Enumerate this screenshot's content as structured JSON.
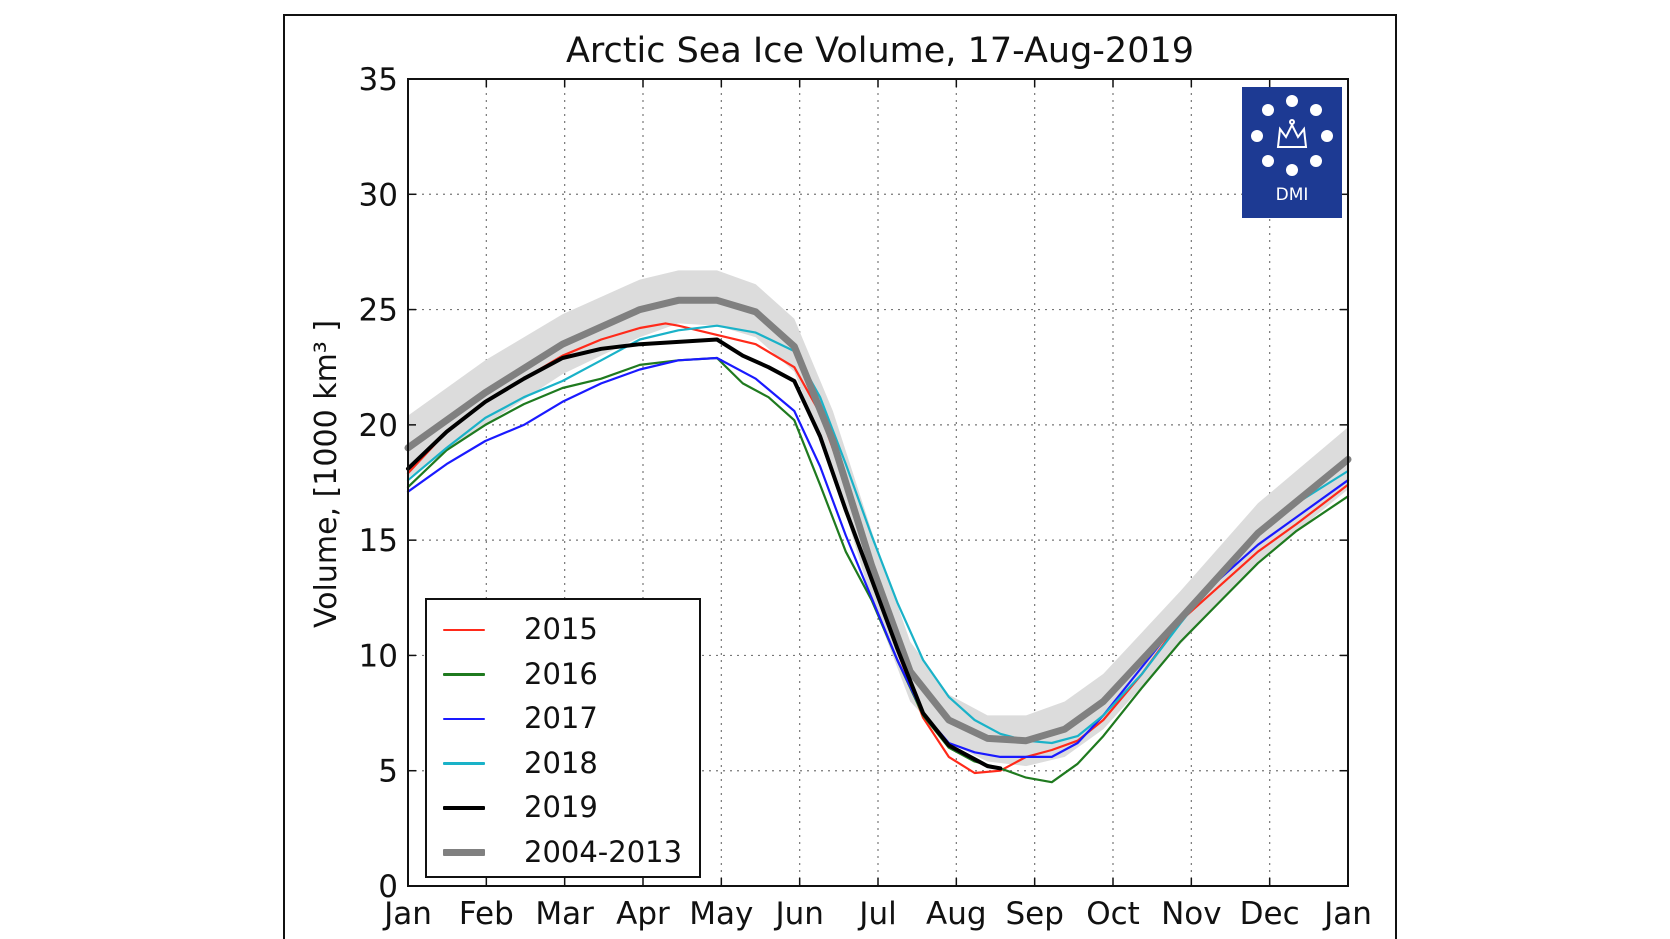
{
  "chart_data": {
    "type": "line",
    "title": "Arctic Sea Ice Volume, 17-Aug-2019",
    "xlabel": "",
    "ylabel": "Volume, [1000 km³ ]",
    "ylim": [
      0,
      35
    ],
    "yticks": [
      "0",
      "5",
      "10",
      "15",
      "20",
      "25",
      "30",
      "35"
    ],
    "x_categories": [
      "Jan",
      "Feb",
      "Mar",
      "Apr",
      "May",
      "Jun",
      "Jul",
      "Aug",
      "Sep",
      "Oct",
      "Nov",
      "Dec",
      "Jan"
    ],
    "x_unit": "day of year (0-365)",
    "grid": true,
    "legend_position": "lower-left",
    "band": {
      "name": "2004-2013 range",
      "color": "#dcdcdc",
      "x": [
        0,
        30,
        60,
        90,
        105,
        120,
        135,
        150,
        165,
        180,
        195,
        210,
        225,
        240,
        255,
        270,
        300,
        330,
        365
      ],
      "upper": [
        20.4,
        22.8,
        24.8,
        26.3,
        26.7,
        26.7,
        26.1,
        24.6,
        20.6,
        15.4,
        10.6,
        8.3,
        7.4,
        7.4,
        8.0,
        9.2,
        12.8,
        16.6,
        19.9
      ],
      "lower": [
        17.7,
        20.0,
        22.2,
        23.8,
        24.4,
        24.3,
        23.8,
        22.3,
        18.0,
        12.4,
        8.0,
        6.2,
        5.4,
        5.2,
        5.6,
        6.8,
        10.5,
        14.0,
        17.2
      ]
    },
    "series": [
      {
        "name": "2015",
        "color": "#ff2a1a",
        "width": 2.2,
        "x": [
          0,
          15,
          30,
          45,
          60,
          75,
          90,
          100,
          105,
          120,
          135,
          150,
          160,
          170,
          180,
          190,
          200,
          210,
          220,
          230,
          240,
          250,
          260,
          270,
          285,
          300,
          315,
          330,
          345,
          365
        ],
        "y": [
          17.9,
          19.7,
          21.0,
          22.0,
          23.0,
          23.7,
          24.2,
          24.4,
          24.3,
          23.9,
          23.5,
          22.5,
          20.5,
          17.4,
          13.9,
          10.2,
          7.3,
          5.6,
          4.9,
          5.0,
          5.6,
          5.9,
          6.3,
          7.2,
          9.2,
          11.5,
          13.0,
          14.5,
          15.7,
          17.4
        ]
      },
      {
        "name": "2016",
        "color": "#1f7a1f",
        "width": 2.2,
        "x": [
          0,
          15,
          30,
          45,
          60,
          75,
          90,
          105,
          120,
          130,
          140,
          150,
          160,
          170,
          180,
          190,
          200,
          210,
          220,
          230,
          240,
          250,
          260,
          270,
          285,
          300,
          315,
          330,
          345,
          365
        ],
        "y": [
          17.3,
          18.9,
          20.0,
          20.9,
          21.6,
          22.0,
          22.6,
          22.8,
          22.9,
          21.8,
          21.2,
          20.2,
          17.4,
          14.5,
          12.4,
          9.8,
          7.4,
          6.0,
          5.4,
          5.1,
          4.7,
          4.5,
          5.3,
          6.5,
          8.6,
          10.6,
          12.3,
          14.0,
          15.4,
          16.9
        ]
      },
      {
        "name": "2017",
        "color": "#1a1aff",
        "width": 2.2,
        "x": [
          0,
          15,
          30,
          45,
          60,
          75,
          90,
          105,
          120,
          135,
          150,
          160,
          170,
          180,
          190,
          200,
          210,
          220,
          230,
          240,
          250,
          260,
          270,
          285,
          300,
          315,
          330,
          345,
          365
        ],
        "y": [
          17.1,
          18.3,
          19.3,
          20.0,
          21.0,
          21.8,
          22.4,
          22.8,
          22.9,
          22.0,
          20.6,
          18.2,
          15.2,
          12.5,
          9.8,
          7.5,
          6.2,
          5.8,
          5.6,
          5.6,
          5.6,
          6.2,
          7.4,
          9.5,
          11.6,
          13.3,
          14.8,
          16.0,
          17.6
        ]
      },
      {
        "name": "2018",
        "color": "#1ab2c8",
        "width": 2.2,
        "x": [
          0,
          15,
          30,
          45,
          60,
          75,
          90,
          105,
          120,
          135,
          150,
          160,
          170,
          180,
          190,
          200,
          210,
          220,
          230,
          240,
          250,
          260,
          270,
          285,
          300,
          315,
          330,
          345,
          365
        ],
        "y": [
          17.6,
          19.0,
          20.3,
          21.2,
          21.9,
          22.8,
          23.7,
          24.1,
          24.3,
          24.0,
          23.2,
          21.2,
          18.3,
          15.2,
          12.3,
          9.8,
          8.2,
          7.2,
          6.6,
          6.3,
          6.2,
          6.5,
          7.4,
          9.2,
          11.4,
          13.5,
          15.3,
          16.6,
          18.0
        ]
      },
      {
        "name": "2019",
        "color": "#000000",
        "width": 4,
        "x": [
          0,
          15,
          30,
          45,
          60,
          75,
          90,
          105,
          120,
          130,
          140,
          150,
          160,
          170,
          180,
          190,
          200,
          210,
          220,
          225,
          230
        ],
        "y": [
          18.1,
          19.7,
          21.0,
          22.0,
          22.9,
          23.3,
          23.5,
          23.6,
          23.7,
          23.0,
          22.5,
          21.9,
          19.5,
          16.3,
          13.3,
          10.3,
          7.5,
          6.1,
          5.5,
          5.2,
          5.1
        ]
      },
      {
        "name": "2004-2013",
        "color": "#808080",
        "width": 7,
        "x": [
          0,
          30,
          60,
          90,
          105,
          120,
          135,
          150,
          165,
          180,
          195,
          210,
          225,
          240,
          255,
          270,
          300,
          330,
          365
        ],
        "y": [
          19.0,
          21.4,
          23.5,
          25.0,
          25.4,
          25.4,
          24.9,
          23.4,
          19.3,
          13.9,
          9.3,
          7.2,
          6.4,
          6.3,
          6.8,
          8.0,
          11.6,
          15.3,
          18.5
        ]
      }
    ]
  },
  "logo": {
    "text": "DMI",
    "background": "#1d3a93"
  }
}
